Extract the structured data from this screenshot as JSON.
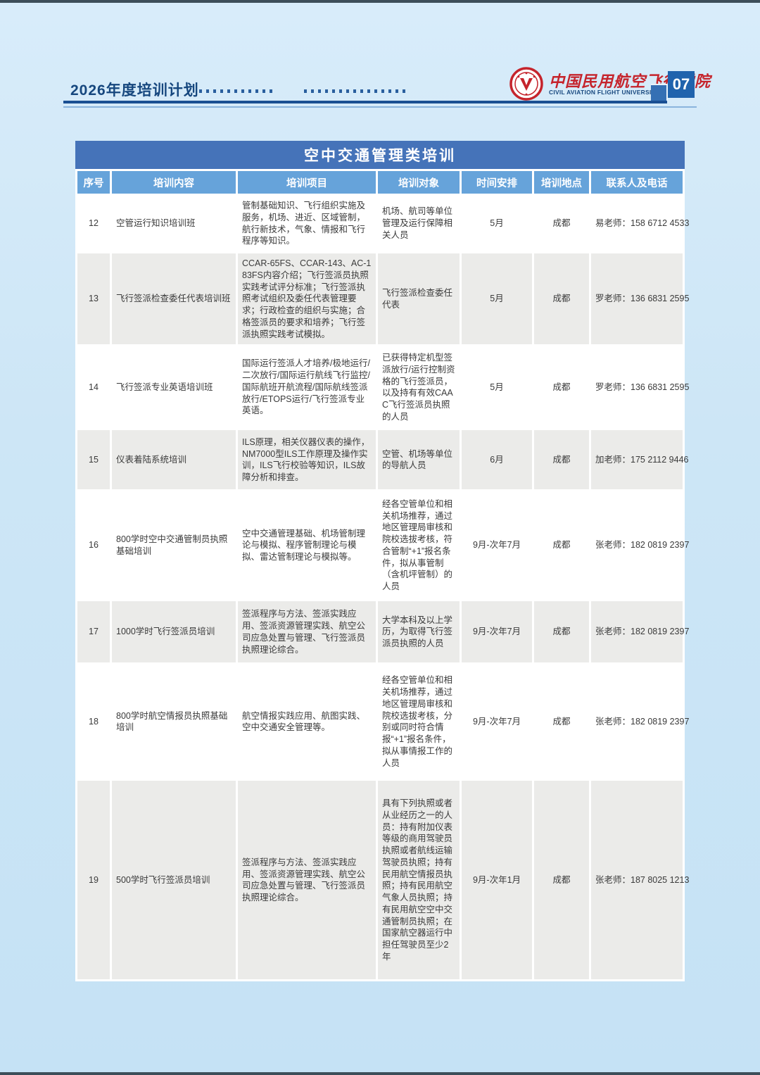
{
  "header": {
    "doc_title": "2026年度培训计划",
    "logo_cn": "中国民用航空飞行学院",
    "logo_en": "CIVIL AVIATION FLIGHT UNIVERSITY OF CHINA",
    "page_number": "07"
  },
  "table": {
    "title": "空中交通管理类培训",
    "columns": [
      "序号",
      "培训内容",
      "培训项目",
      "培训对象",
      "时间安排",
      "培训地点",
      "联系人及电话"
    ],
    "rows": [
      {
        "no": "12",
        "content": "空管运行知识培训班",
        "project": "管制基础知识、飞行组织实施及服务，机场、进近、区域管制，航行新技术，气象、情报和飞行程序等知识。",
        "audience": "机场、航司等单位管理及运行保障相关人员",
        "time": "5月",
        "location": "成都",
        "contact": "易老师：158 6712 4533"
      },
      {
        "no": "13",
        "content": "飞行签派检查委任代表培训班",
        "project": "CCAR-65FS、CCAR-143、AC-183FS内容介绍；飞行签派员执照实践考试评分标准；飞行签派执照考试组织及委任代表管理要求；行政检查的组织与实施；合格签派员的要求和培养；飞行签派执照实践考试模拟。",
        "audience": "飞行签派检查委任代表",
        "time": "5月",
        "location": "成都",
        "contact": "罗老师：136 6831 2595"
      },
      {
        "no": "14",
        "content": "飞行签派专业英语培训班",
        "project": "国际运行签派人才培养/极地运行/二次放行/国际运行航线飞行监控/国际航班开航流程/国际航线签派放行/ETOPS运行/飞行签派专业英语。",
        "audience": "已获得特定机型签派放行/运行控制资格的飞行签派员，以及持有有效CAAC飞行签派员执照的人员",
        "time": "5月",
        "location": "成都",
        "contact": "罗老师：136 6831 2595"
      },
      {
        "no": "15",
        "content": "仪表着陆系统培训",
        "project": "ILS原理，相关仪器仪表的操作，NM7000型ILS工作原理及操作实训，ILS飞行校验等知识，ILS故障分析和排查。",
        "audience": "空管、机场等单位的导航人员",
        "time": "6月",
        "location": "成都",
        "contact": "加老师：175 2112 9446"
      },
      {
        "no": "16",
        "content": "800学时空中交通管制员执照基础培训",
        "project": "空中交通管理基础、机场管制理论与模拟、程序管制理论与模拟、雷达管制理论与模拟等。",
        "audience": "经各空管单位和相关机场推荐，通过地区管理局审核和院校选拔考核，符合管制“+1”报名条件，拟从事管制（含机坪管制）的人员",
        "time": "9月-次年7月",
        "location": "成都",
        "contact": "张老师：182 0819 2397"
      },
      {
        "no": "17",
        "content": "1000学时飞行签派员培训",
        "project": "签派程序与方法、签派实践应用、签派资源管理实践、航空公司应急处置与管理、飞行签派员执照理论综合。",
        "audience": "大学本科及以上学历，为取得飞行签派员执照的人员",
        "time": "9月-次年7月",
        "location": "成都",
        "contact": "张老师：182 0819 2397"
      },
      {
        "no": "18",
        "content": "800学时航空情报员执照基础培训",
        "project": "航空情报实践应用、航图实践、空中交通安全管理等。",
        "audience": "经各空管单位和相关机场推荐，通过地区管理局审核和院校选拔考核，分别或同时符合情报“+1”报名条件，拟从事情报工作的人员",
        "time": "9月-次年7月",
        "location": "成都",
        "contact": "张老师：182 0819 2397"
      },
      {
        "no": "19",
        "content": "500学时飞行签派员培训",
        "project": "签派程序与方法、签派实践应用、签派资源管理实践、航空公司应急处置与管理、飞行签派员执照理论综合。",
        "audience": "具有下列执照或者从业经历之一的人员：持有附加仪表等级的商用驾驶员执照或者航线运输驾驶员执照；持有民用航空情报员执照；持有民用航空气象人员执照；持有民用航空空中交通管制员执照；在国家航空器运行中担任驾驶员至少2年",
        "time": "9月-次年1月",
        "location": "成都",
        "contact": "张老师：187 8025 1213"
      }
    ]
  },
  "colors": {
    "page_bg": "#cde6f6",
    "title_bar": "#4573b9",
    "header_row": "#66a3da",
    "row_alt": "#ebebe9",
    "accent_dark_blue": "#16477e",
    "logo_red": "#c5242c",
    "page_number_box": "#2063ad"
  }
}
